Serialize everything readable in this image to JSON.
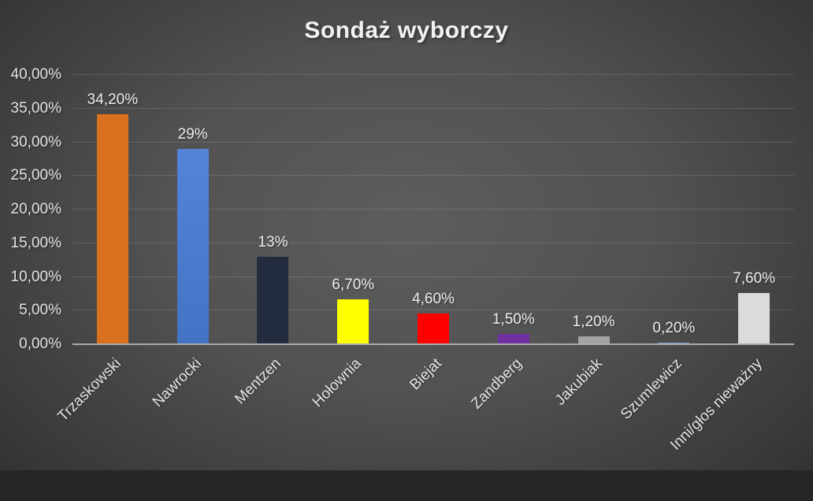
{
  "chart_data": {
    "type": "bar",
    "title": "Sondaż wyborczy",
    "categories": [
      "Trzaskowski",
      "Nawrocki",
      "Mentzen",
      "Hołownia",
      "Biejat",
      "Zandberg",
      "Jakubiak",
      "Szumlewicz",
      "Inni/głos nieważny"
    ],
    "values": [
      34.2,
      29,
      13,
      6.7,
      4.6,
      1.5,
      1.2,
      0.2,
      7.6
    ],
    "value_labels": [
      "34,20%",
      "29%",
      "13%",
      "6,70%",
      "4,60%",
      "1,50%",
      "1,20%",
      "0,20%",
      "7,60%"
    ],
    "colors": [
      "#D9711E",
      "#4472C4",
      "#222C3E",
      "#FFFF00",
      "#FF0000",
      "#7030A0",
      "#A3A3A3",
      "#7D9BD3",
      "#DBDBDB"
    ],
    "colors_top": [
      null,
      "#5583D8",
      null,
      null,
      null,
      null,
      null,
      null,
      null
    ],
    "y_ticks": [
      "0,00%",
      "5,00%",
      "10,00%",
      "15,00%",
      "20,00%",
      "25,00%",
      "30,00%",
      "35,00%",
      "40,00%"
    ],
    "ylim": [
      0,
      40
    ],
    "xlabel": "",
    "ylabel": "",
    "grid": true,
    "legend": false
  },
  "style": {
    "background_center": "#5d5d5d",
    "background_edge": "#272727",
    "text_color": "#e8e8e8",
    "gridline_color": "rgba(255,255,255,0.13)",
    "axis_line_color": "#a9a9a9",
    "title_color": "#f2f2f2"
  }
}
